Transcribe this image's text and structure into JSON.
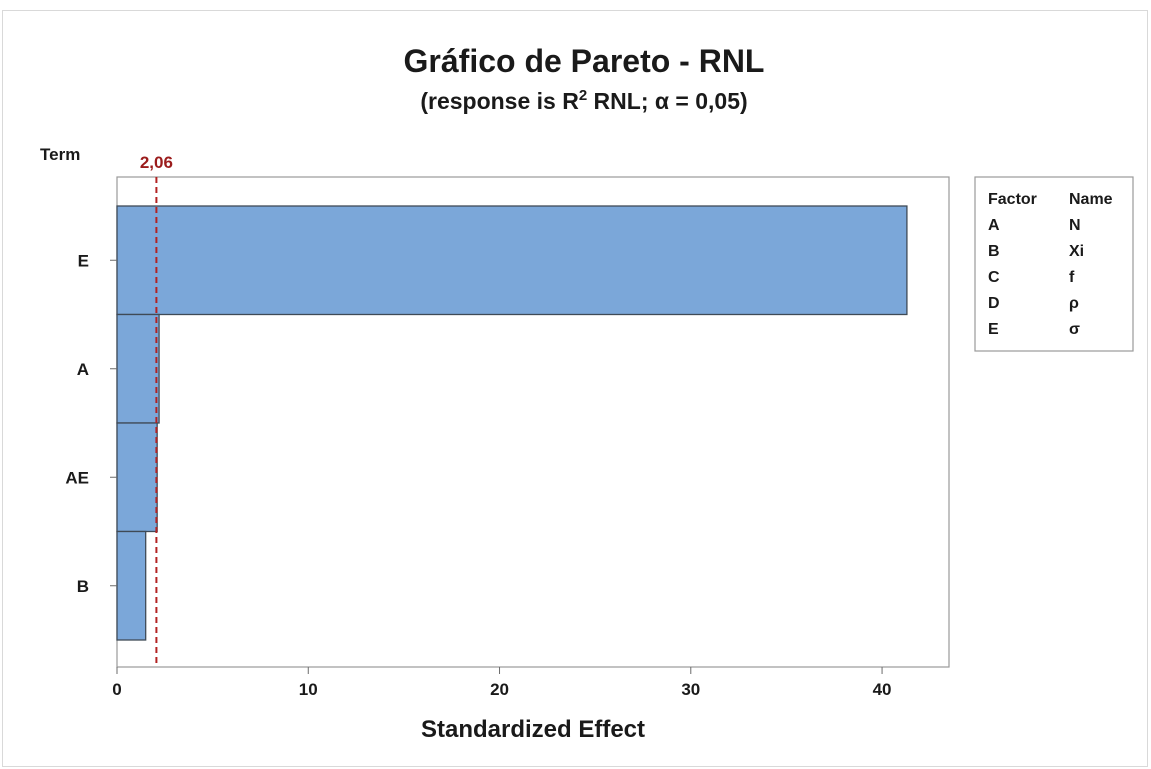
{
  "chart_data": {
    "type": "bar",
    "orientation": "horizontal",
    "title": "Gráfico de Pareto - RNL",
    "subtitle_prefix": "(response is R",
    "subtitle_sup": "2",
    "subtitle_suffix": " RNL; α = 0,05)",
    "xlabel": "Standardized Effect",
    "ylabel": "Term",
    "categories": [
      "E",
      "A",
      "AE",
      "B"
    ],
    "values": [
      41.3,
      2.2,
      2.1,
      1.5
    ],
    "xlim": [
      0,
      43.5
    ],
    "xticks": [
      0,
      10,
      20,
      30,
      40
    ],
    "reference_line": {
      "value": 2.06,
      "label": "2,06",
      "color": "#b22222"
    },
    "bar_color": "#7ba7d9",
    "bar_edge_color": "#3f4a56",
    "grid": false,
    "legend": {
      "placement": "right",
      "headers": [
        "Factor",
        "Name"
      ],
      "rows": [
        [
          "A",
          "N"
        ],
        [
          "B",
          "Xi"
        ],
        [
          "C",
          "f"
        ],
        [
          "D",
          "ρ"
        ],
        [
          "E",
          "σ"
        ]
      ]
    }
  }
}
